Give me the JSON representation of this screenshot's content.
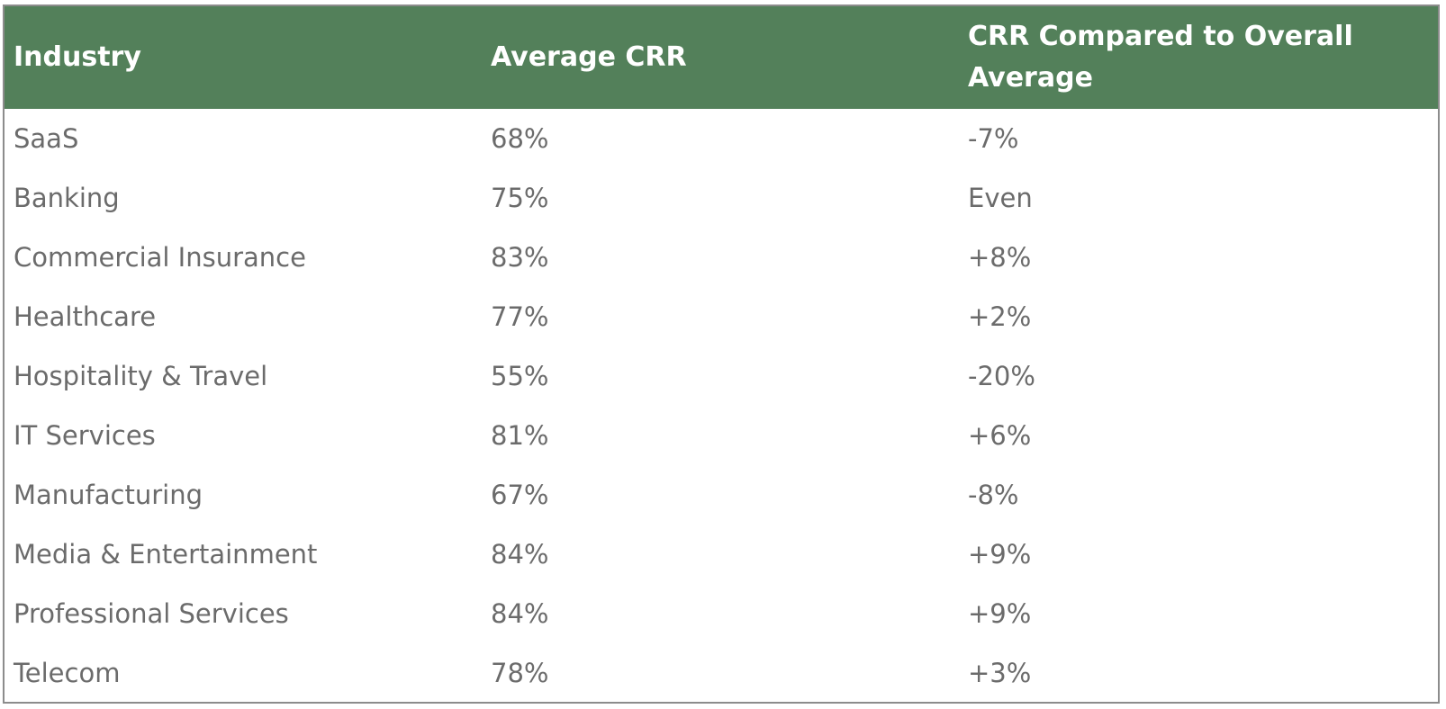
{
  "table": {
    "header_color": "#53805a",
    "columns": [
      "Industry",
      "Average CRR",
      "CRR Compared to Overall Average"
    ],
    "rows": [
      [
        "SaaS",
        "68%",
        "-7%"
      ],
      [
        "Banking",
        "75%",
        "Even"
      ],
      [
        "Commercial Insurance",
        "83%",
        "+8%"
      ],
      [
        "Healthcare",
        "77%",
        "+2%"
      ],
      [
        "Hospitality & Travel",
        "55%",
        "-20%"
      ],
      [
        "IT Services",
        "81%",
        "+6%"
      ],
      [
        "Manufacturing",
        "67%",
        "-8%"
      ],
      [
        "Media & Entertainment",
        "84%",
        "+9%"
      ],
      [
        "Professional Services",
        "84%",
        "+9%"
      ],
      [
        "Telecom",
        "78%",
        "+3%"
      ]
    ]
  }
}
